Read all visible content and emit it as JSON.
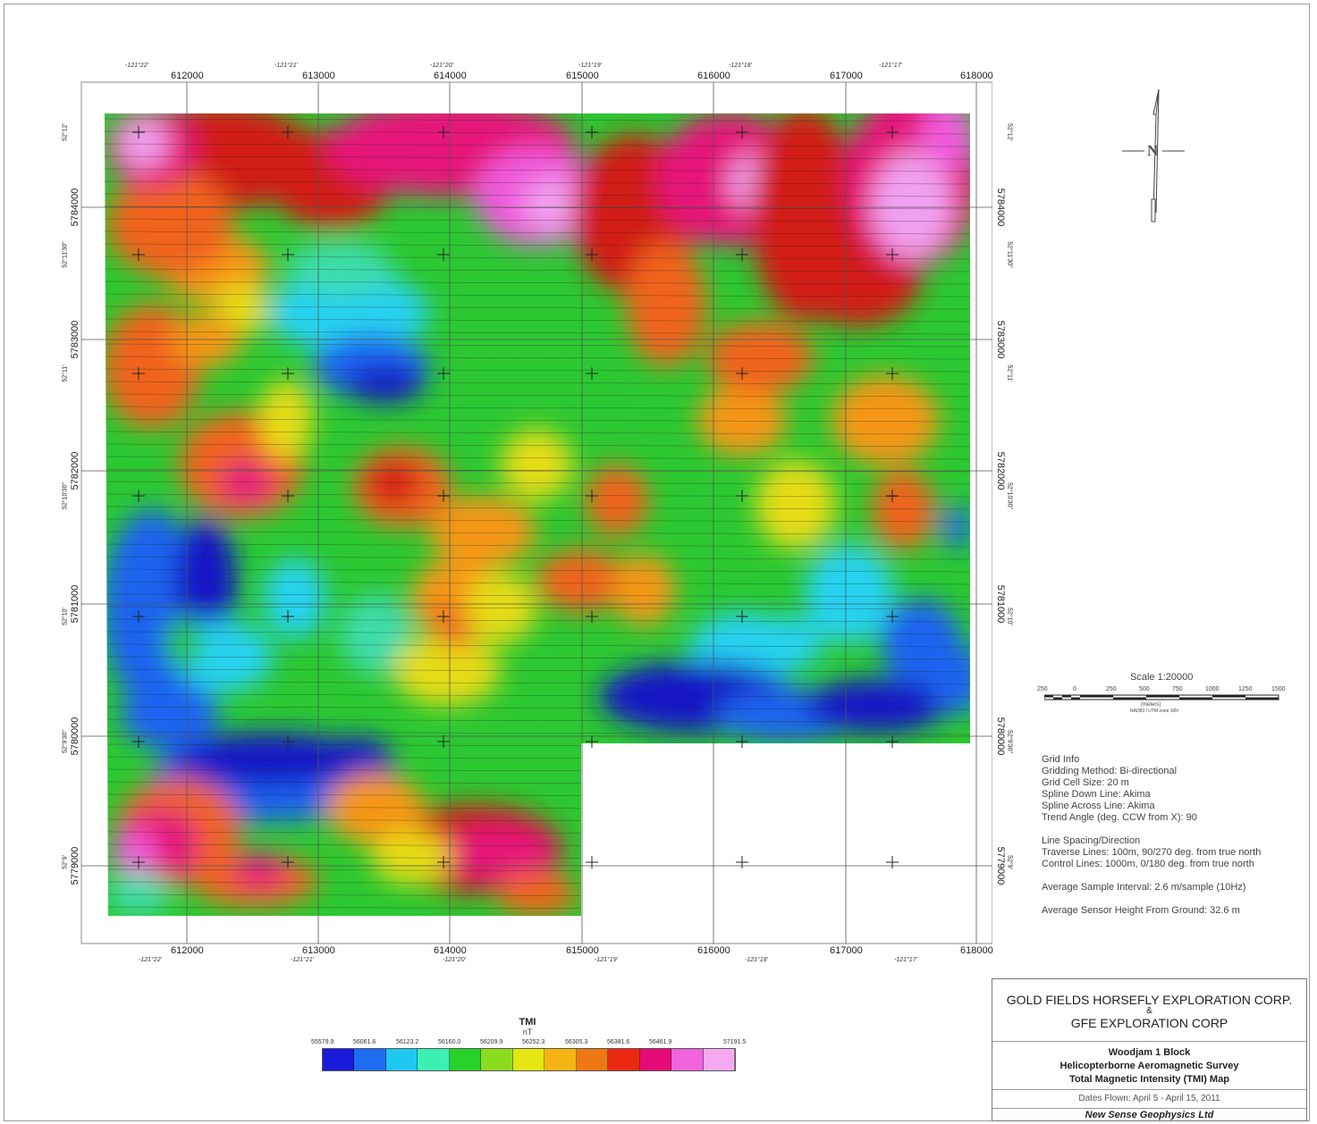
{
  "map": {
    "utm_easting_ticks": [
      "612000",
      "613000",
      "614000",
      "615000",
      "616000",
      "617000",
      "618000"
    ],
    "utm_northing_ticks": [
      "5784000",
      "5783000",
      "5782000",
      "5781000",
      "5780000",
      "5779000"
    ],
    "longitude_ticks": [
      "-121°22'",
      "-121°21'",
      "-121°20'",
      "-121°19'",
      "-121°18'",
      "-121°17'"
    ],
    "latitude_ticks_left": [
      "52°12'",
      "52°11'30\"",
      "52°11'",
      "52°10'30\"",
      "52°10'",
      "52°9'30\"",
      "52°9'"
    ],
    "latitude_ticks_right": [
      "52°12'",
      "52°11'30\"",
      "52°11'",
      "52°10'30\"",
      "52°10'",
      "52°9'30\"",
      "52°9'"
    ]
  },
  "north_arrow": {
    "label": "N"
  },
  "scale_bar": {
    "title": "Scale 1:20000",
    "ticks": [
      "250",
      "0",
      "250",
      "500",
      "750",
      "1000",
      "1250",
      "1500"
    ],
    "unit": "(meters)",
    "datum": "NAD83 / UTM zone 10N"
  },
  "grid_info": {
    "heading": "Grid Info",
    "lines": [
      "Gridding Method: Bi-directional",
      "Grid Cell Size: 20 m",
      "Spline Down Line: Akima",
      "Spline Across Line: Akima",
      "Trend Angle (deg. CCW from X): 90"
    ]
  },
  "line_spacing": {
    "heading": "Line Spacing/Direction",
    "lines": [
      "Traverse Lines: 100m, 90/270 deg. from true north",
      "Control Lines: 1000m, 0/180 deg. from true north"
    ]
  },
  "sample_interval": "Average Sample Interval: 2.6 m/sample (10Hz)",
  "sensor_height": "Average Sensor Height From Ground: 32.6 m",
  "legend": {
    "title": "TMI",
    "unit": "nT",
    "values": [
      "55579.9",
      "56061.6",
      "56123.2",
      "56160.0",
      "56209.9",
      "56252.3",
      "56305.3",
      "56381.6",
      "56461.9",
      "57191.5"
    ],
    "colors": [
      "#1a1adc",
      "#1e6cf0",
      "#1ec8f0",
      "#3cf0b4",
      "#28d228",
      "#8cdc1e",
      "#e6e614",
      "#f5b414",
      "#f07814",
      "#eb2814",
      "#e60a78",
      "#f064dc",
      "#f5aaf0"
    ]
  },
  "title_block": {
    "company1": "GOLD FIELDS HORSEFLY EXPLORATION CORP.",
    "amp": "&",
    "company2": "GFE EXPLORATION CORP",
    "block": "Woodjam 1 Block",
    "survey": "Helicopterborne Aeromagnetic Survey",
    "map_type": "Total Magnetic Intensity (TMI) Map",
    "dates": "Dates Flown: April 5 - April 15, 2011",
    "contractor": "New Sense Geophysics Ltd"
  }
}
